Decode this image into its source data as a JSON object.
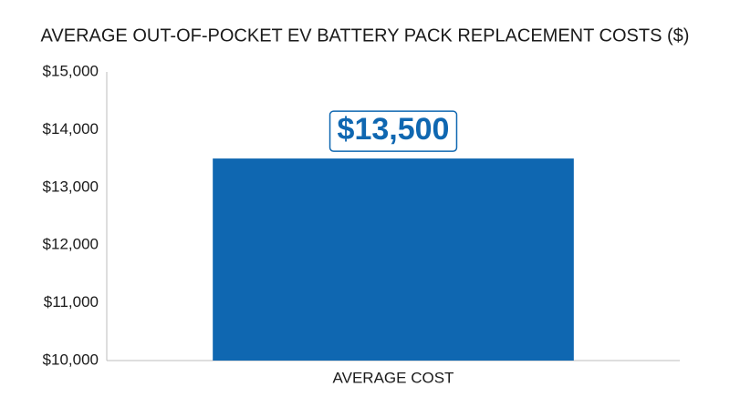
{
  "chart_data": {
    "type": "bar",
    "title": "AVERAGE OUT-OF-POCKET EV BATTERY PACK REPLACEMENT COSTS ($)",
    "categories": [
      "AVERAGE COST"
    ],
    "values": [
      13500
    ],
    "value_labels": [
      "$13,500"
    ],
    "color": "#0f67b1",
    "ylim": [
      10000,
      15000
    ],
    "yticks": [
      {
        "value": 10000,
        "label": "$10,000"
      },
      {
        "value": 11000,
        "label": "$11,000"
      },
      {
        "value": 12000,
        "label": "$12,000"
      },
      {
        "value": 13000,
        "label": "$13,000"
      },
      {
        "value": 14000,
        "label": "$14,000"
      },
      {
        "value": 15000,
        "label": "$15,000"
      }
    ],
    "grid": false
  }
}
